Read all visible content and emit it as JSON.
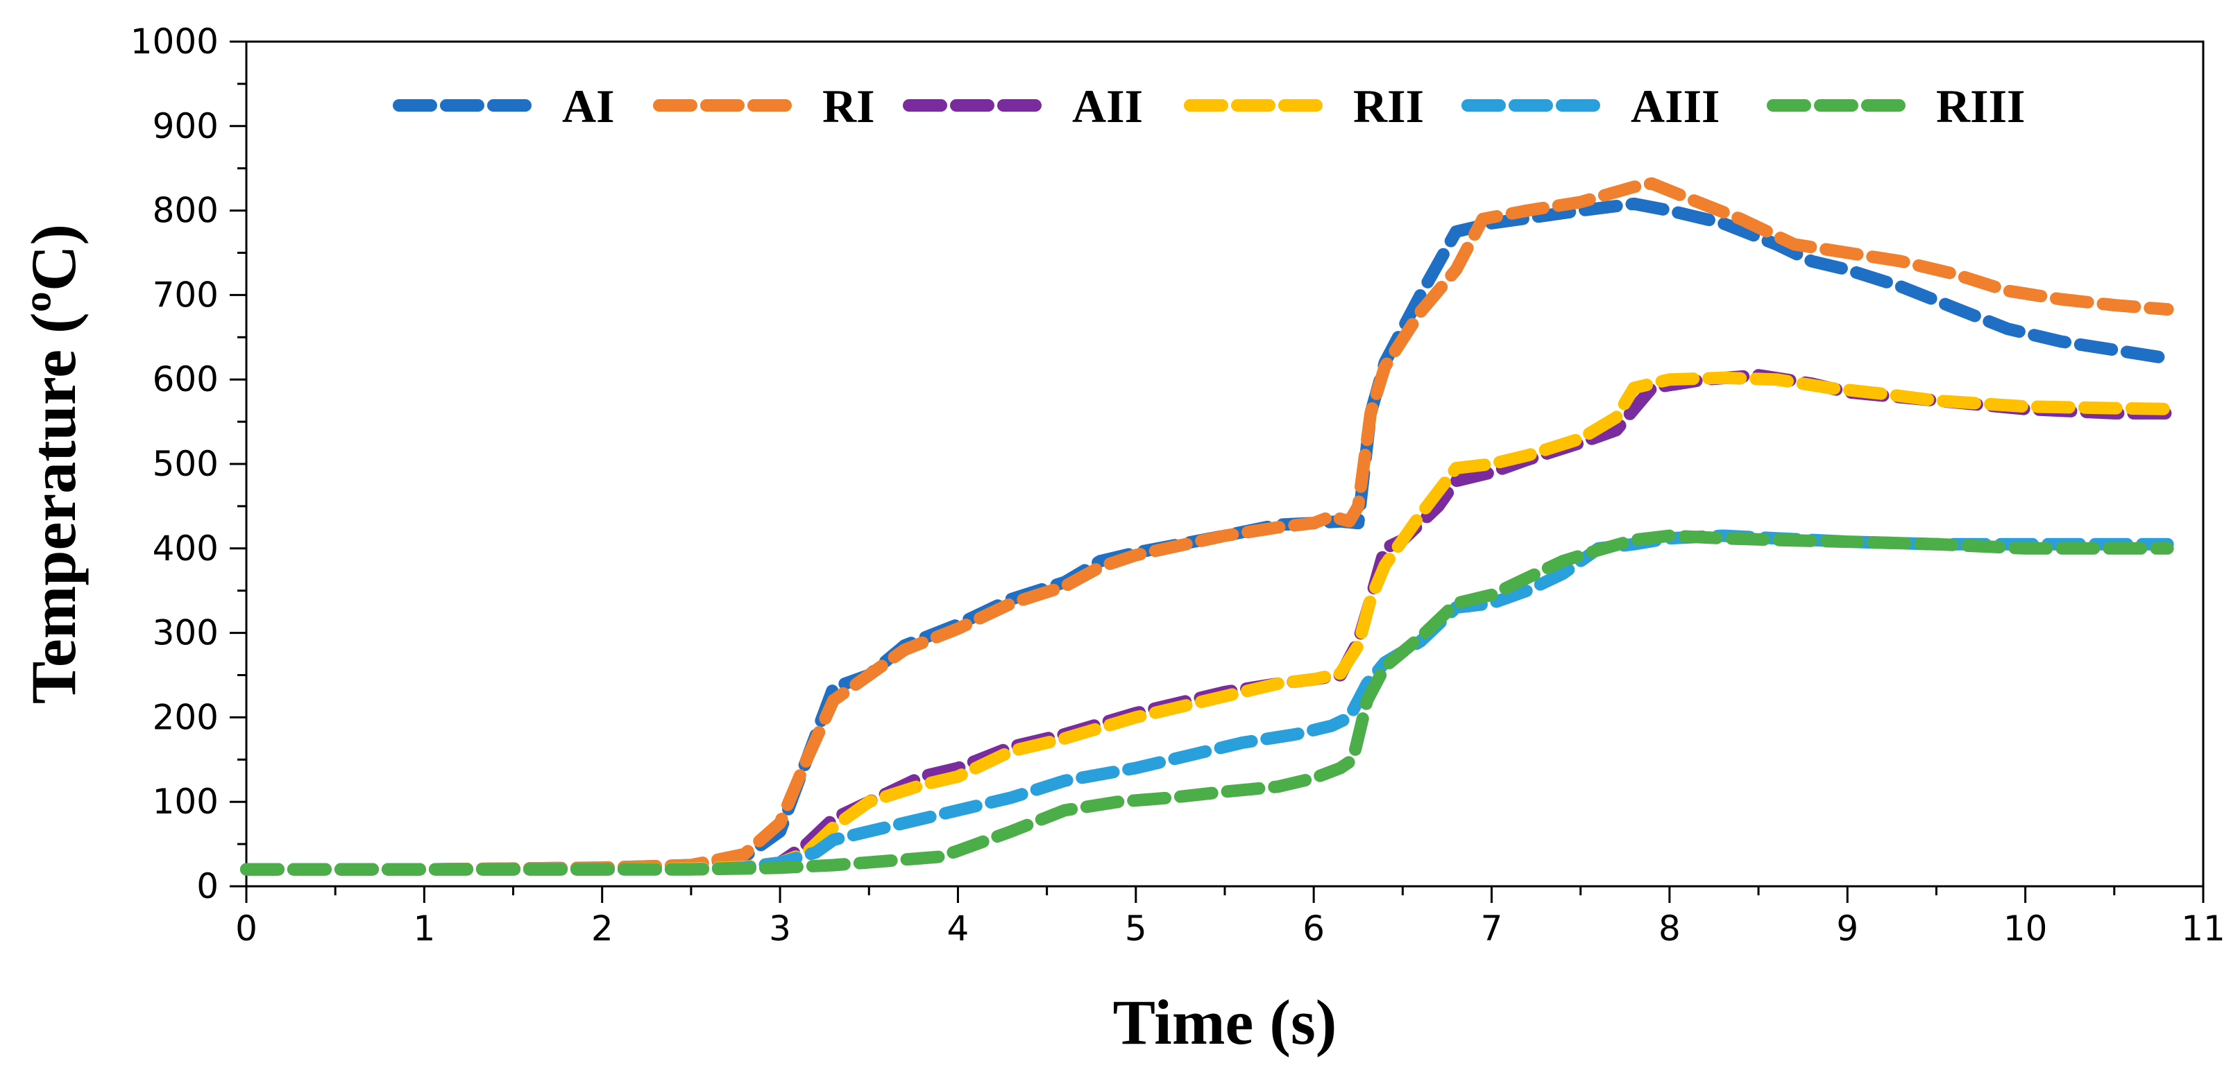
{
  "chart_data": {
    "type": "line",
    "title": "",
    "xlabel": "Time (s)",
    "ylabel": "Temperature (ºC)",
    "xlim": [
      0,
      11
    ],
    "ylim": [
      0,
      1000
    ],
    "x_ticks": [
      0,
      1,
      2,
      3,
      4,
      5,
      6,
      7,
      8,
      9,
      10,
      11
    ],
    "x_tick_labels": [
      "0",
      "1",
      "2",
      "3",
      "4",
      "5",
      "6",
      "7",
      "8",
      "9",
      "10",
      "11"
    ],
    "y_ticks": [
      0,
      100,
      200,
      300,
      400,
      500,
      600,
      700,
      800,
      900,
      1000
    ],
    "y_tick_labels": [
      "0",
      "100",
      "200",
      "300",
      "400",
      "500",
      "600",
      "700",
      "800",
      "900",
      "1000"
    ],
    "grid": false,
    "legend_position": "top",
    "line_style": "dashed",
    "series": [
      {
        "name": "AI",
        "color": "#1f6fc5",
        "x": [
          0,
          1,
          2,
          2.5,
          2.8,
          3.0,
          3.15,
          3.3,
          3.5,
          3.7,
          4.0,
          4.3,
          4.6,
          4.8,
          5.0,
          5.5,
          5.8,
          6.0,
          6.15,
          6.25,
          6.32,
          6.4,
          6.6,
          6.8,
          7.0,
          7.5,
          7.8,
          8.0,
          8.3,
          8.6,
          8.8,
          9.0,
          9.3,
          9.6,
          9.9,
          10.2,
          10.5,
          10.8
        ],
        "y": [
          20,
          20,
          22,
          25,
          35,
          65,
          150,
          235,
          250,
          285,
          310,
          340,
          360,
          385,
          395,
          415,
          428,
          430,
          432,
          430,
          560,
          620,
          700,
          775,
          785,
          800,
          808,
          800,
          785,
          760,
          740,
          730,
          710,
          685,
          660,
          645,
          635,
          625
        ]
      },
      {
        "name": "RI",
        "color": "#f07f2e",
        "x": [
          0,
          1,
          2,
          2.5,
          2.8,
          3.0,
          3.15,
          3.3,
          3.5,
          3.7,
          4.0,
          4.3,
          4.6,
          4.8,
          5.0,
          5.5,
          5.8,
          6.0,
          6.1,
          6.2,
          6.25,
          6.32,
          6.4,
          6.6,
          6.8,
          6.95,
          7.2,
          7.5,
          7.8,
          7.9,
          8.1,
          8.4,
          8.7,
          9.0,
          9.3,
          9.6,
          9.9,
          10.2,
          10.5,
          10.8
        ],
        "y": [
          20,
          20,
          22,
          25,
          38,
          75,
          150,
          220,
          250,
          280,
          305,
          335,
          355,
          378,
          392,
          415,
          425,
          430,
          438,
          432,
          450,
          560,
          615,
          680,
          730,
          790,
          800,
          810,
          828,
          832,
          815,
          790,
          760,
          750,
          740,
          725,
          705,
          695,
          688,
          683
        ]
      },
      {
        "name": "AII",
        "color": "#7a2c9e",
        "x": [
          0,
          1,
          2,
          2.5,
          2.8,
          3.0,
          3.15,
          3.3,
          3.5,
          3.8,
          4.0,
          4.3,
          4.6,
          5.0,
          5.5,
          5.8,
          6.0,
          6.15,
          6.25,
          6.32,
          6.4,
          6.5,
          6.7,
          6.8,
          7.0,
          7.2,
          7.5,
          7.7,
          7.9,
          8.2,
          8.5,
          8.8,
          9.0,
          9.5,
          10.0,
          10.5,
          10.8
        ],
        "y": [
          20,
          20,
          20,
          21,
          23,
          28,
          50,
          80,
          100,
          130,
          140,
          165,
          180,
          205,
          230,
          240,
          245,
          250,
          290,
          340,
          400,
          410,
          450,
          480,
          490,
          505,
          525,
          540,
          590,
          600,
          605,
          595,
          585,
          575,
          565,
          560,
          560
        ]
      },
      {
        "name": "RII",
        "color": "#ffc000",
        "x": [
          0,
          1,
          2,
          2.5,
          2.8,
          3.0,
          3.15,
          3.3,
          3.5,
          3.8,
          4.0,
          4.3,
          4.6,
          5.0,
          5.5,
          5.8,
          6.0,
          6.15,
          6.25,
          6.32,
          6.4,
          6.6,
          6.8,
          7.0,
          7.2,
          7.5,
          7.7,
          7.8,
          8.0,
          8.3,
          8.6,
          8.9,
          9.2,
          9.5,
          10.0,
          10.5,
          10.8
        ],
        "y": [
          20,
          20,
          20,
          21,
          23,
          28,
          40,
          70,
          100,
          120,
          130,
          160,
          175,
          200,
          225,
          240,
          245,
          252,
          285,
          340,
          380,
          440,
          495,
          500,
          510,
          530,
          555,
          590,
          600,
          602,
          600,
          590,
          583,
          575,
          568,
          566,
          565
        ]
      },
      {
        "name": "AIII",
        "color": "#29a0dc",
        "x": [
          0,
          1,
          2,
          2.5,
          2.8,
          3.0,
          3.2,
          3.3,
          3.6,
          4.0,
          4.3,
          4.6,
          5.0,
          5.3,
          5.6,
          5.9,
          6.1,
          6.2,
          6.3,
          6.4,
          6.6,
          6.8,
          7.0,
          7.2,
          7.4,
          7.6,
          7.8,
          8.0,
          8.3,
          8.6,
          9.0,
          9.5,
          10.0,
          10.5,
          10.8
        ],
        "y": [
          20,
          20,
          20,
          20,
          22,
          28,
          40,
          55,
          70,
          90,
          105,
          125,
          140,
          155,
          170,
          180,
          190,
          200,
          240,
          265,
          290,
          330,
          335,
          350,
          370,
          400,
          405,
          412,
          415,
          412,
          408,
          405,
          405,
          405,
          405
        ]
      },
      {
        "name": "RIII",
        "color": "#4cae48",
        "x": [
          0,
          1,
          2,
          2.5,
          2.8,
          3.0,
          3.3,
          3.6,
          3.9,
          4.0,
          4.3,
          4.6,
          4.9,
          5.2,
          5.5,
          5.8,
          6.0,
          6.15,
          6.22,
          6.3,
          6.4,
          6.6,
          6.8,
          7.0,
          7.2,
          7.4,
          7.6,
          7.8,
          8.0,
          8.3,
          8.6,
          9.0,
          9.5,
          10.0,
          10.5,
          10.8
        ],
        "y": [
          20,
          20,
          20,
          20,
          21,
          22,
          25,
          30,
          35,
          42,
          65,
          90,
          100,
          105,
          112,
          118,
          128,
          140,
          150,
          220,
          260,
          295,
          335,
          345,
          365,
          385,
          398,
          410,
          415,
          412,
          410,
          408,
          405,
          400,
          400,
          400
        ]
      }
    ]
  }
}
